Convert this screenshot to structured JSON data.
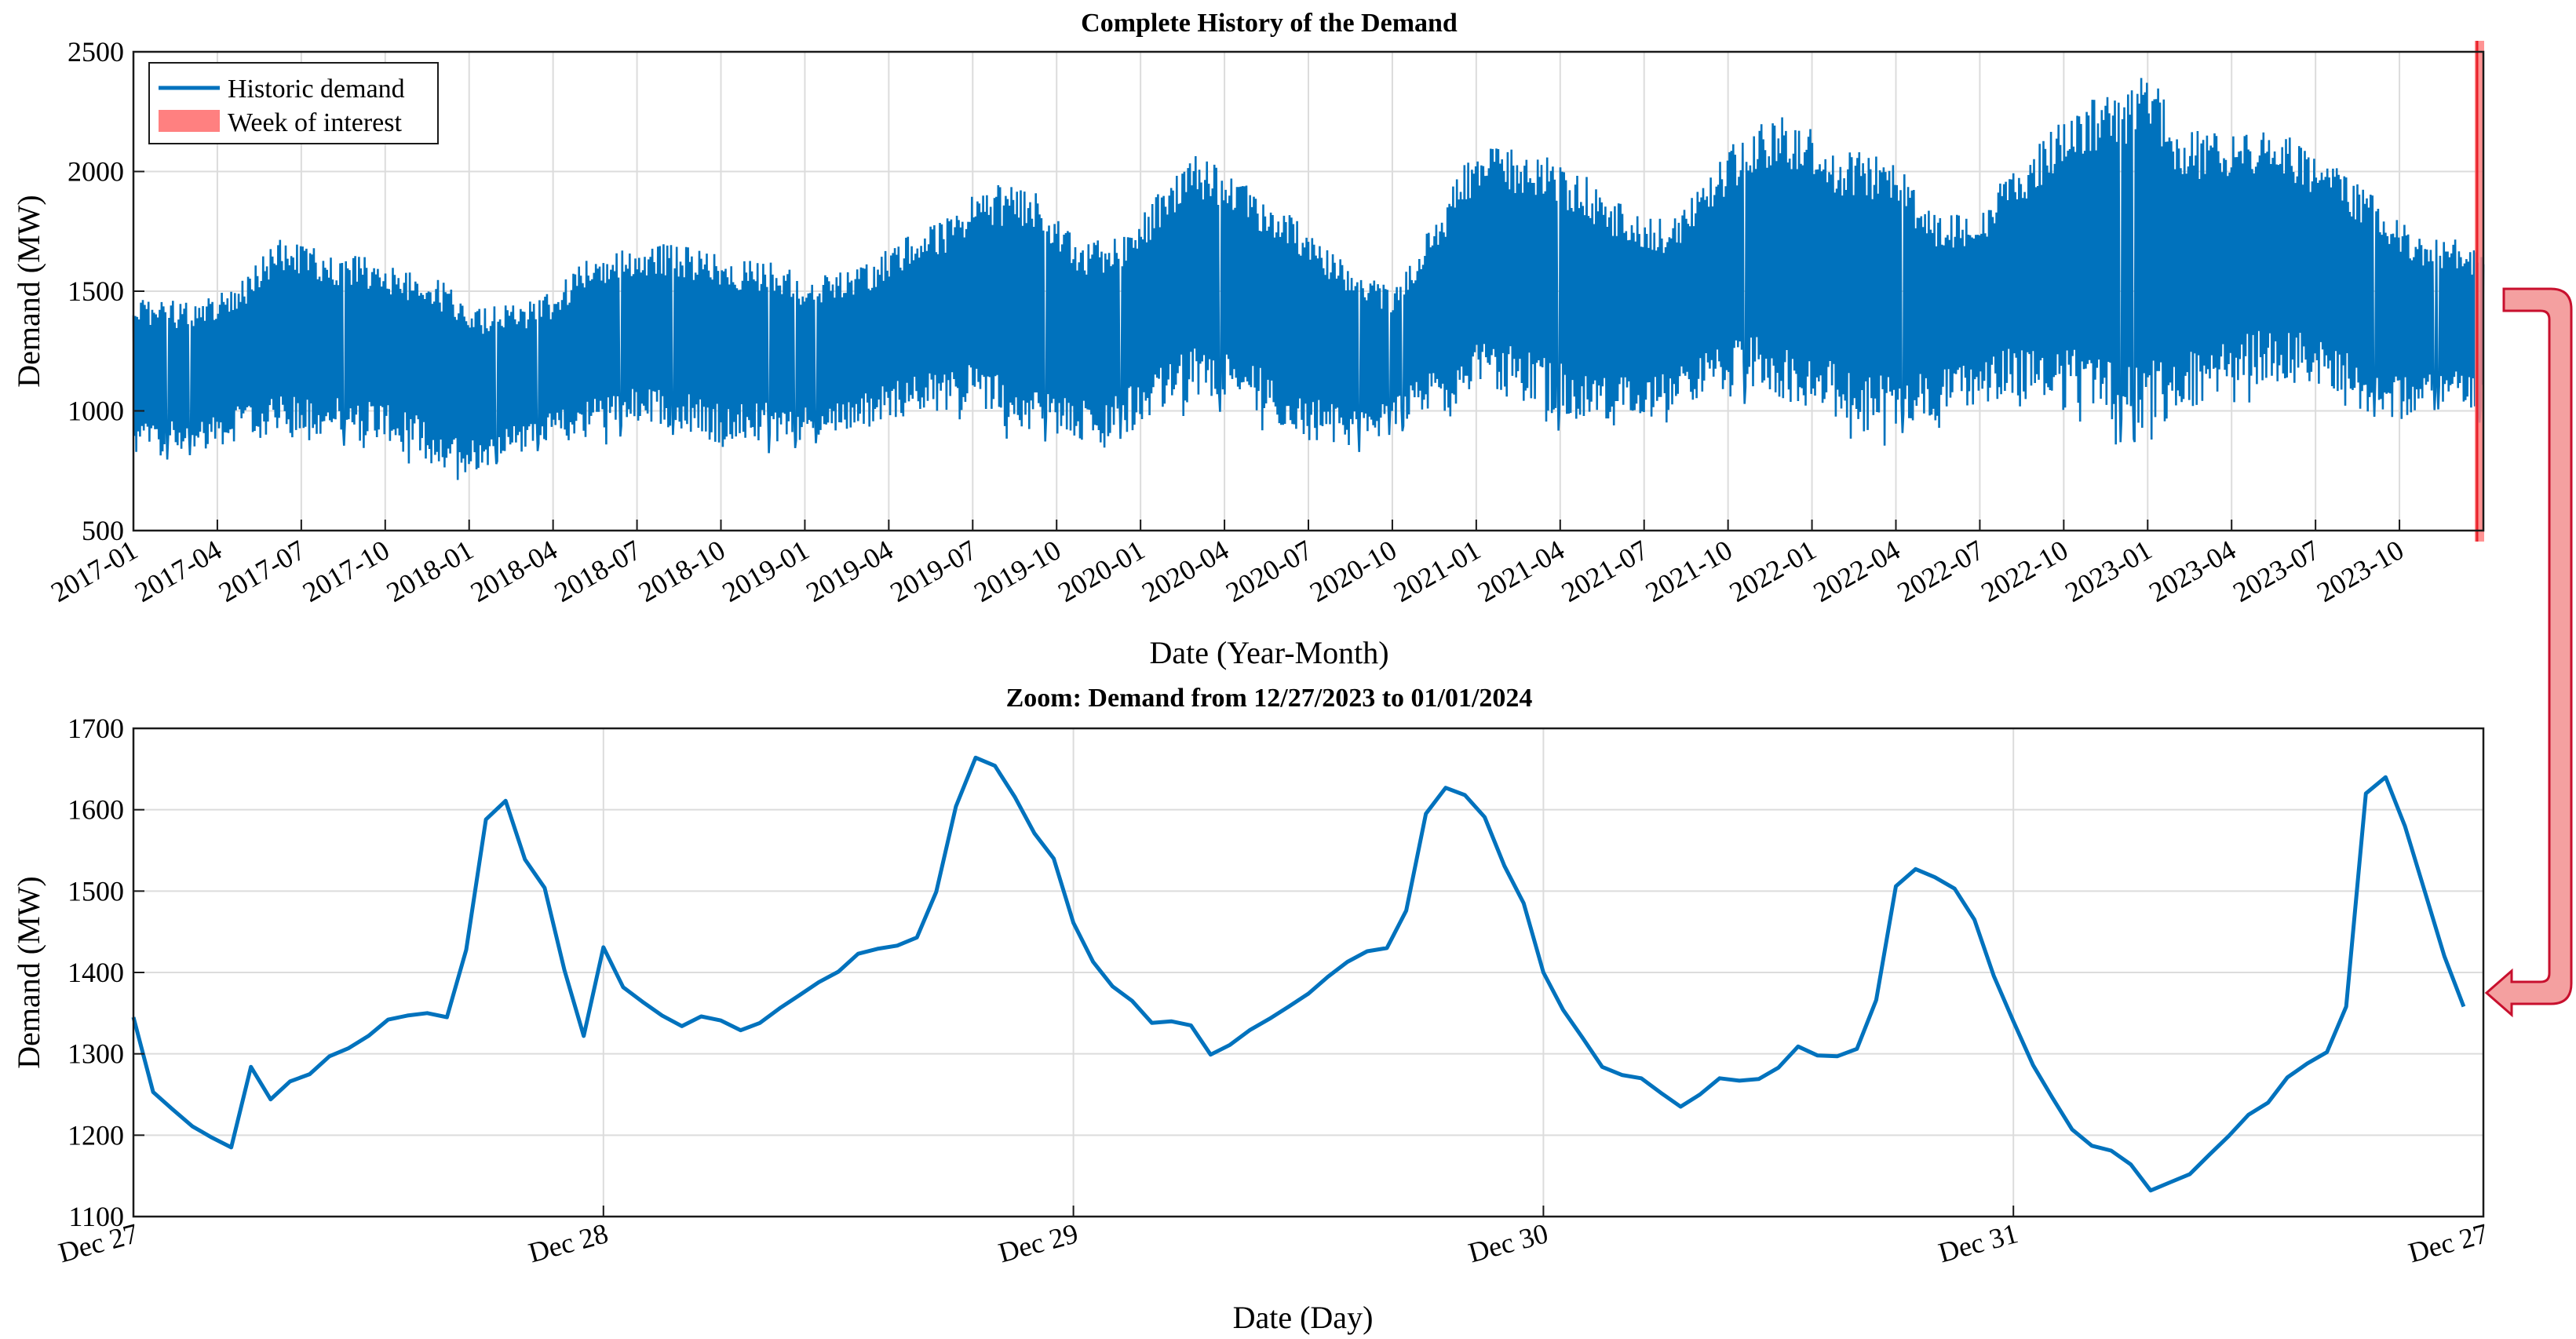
{
  "colors": {
    "series": "#0072BD",
    "highlight": "#FF8080",
    "highlight_edge": "#E8202A",
    "arrow_fill": "#F4A0A0",
    "arrow_edge": "#C8102E"
  },
  "chart_data": [
    {
      "type": "line",
      "title": "Complete History of the Demand",
      "xlabel": "Date (Year-Month)",
      "ylabel": "Demand (MW)",
      "ylim": [
        500,
        2500
      ],
      "yticks": [
        "500",
        "1000",
        "1500",
        "2000",
        "2500"
      ],
      "xticks": [
        "2017-01",
        "2017-04",
        "2017-07",
        "2017-10",
        "2018-01",
        "2018-04",
        "2018-07",
        "2018-10",
        "2019-01",
        "2019-04",
        "2019-07",
        "2019-10",
        "2020-01",
        "2020-04",
        "2020-07",
        "2020-10",
        "2021-01",
        "2021-04",
        "2021-07",
        "2021-10",
        "2022-01",
        "2022-04",
        "2022-07",
        "2022-10",
        "2023-01",
        "2023-04",
        "2023-07",
        "2023-10"
      ],
      "legend": [
        "Historic demand",
        "Week of interest"
      ],
      "legend_position": "top-left",
      "grid": true,
      "series": [
        {
          "name": "Historic demand",
          "x_units": "months since 2017-01",
          "envelope_x": [
            0,
            1,
            2,
            3,
            4,
            5,
            6,
            7,
            8,
            9,
            10,
            11,
            12,
            13,
            14,
            15,
            16,
            17,
            18,
            19,
            20,
            21,
            22,
            23,
            24,
            25,
            26,
            27,
            28,
            29,
            30,
            31,
            32,
            33,
            34,
            35,
            36,
            37,
            38,
            39,
            40,
            41,
            42,
            43,
            44,
            45,
            46,
            47,
            48,
            49,
            50,
            51,
            52,
            53,
            54,
            55,
            56,
            57,
            58,
            59,
            60,
            61,
            62,
            63,
            64,
            65,
            66,
            67,
            68,
            69,
            70,
            71,
            72,
            73,
            74,
            75,
            76,
            77,
            78,
            79,
            80,
            81,
            82,
            83,
            84
          ],
          "envelope_min": [
            800,
            830,
            830,
            850,
            880,
            880,
            880,
            900,
            900,
            880,
            830,
            740,
            740,
            780,
            830,
            850,
            880,
            920,
            930,
            920,
            900,
            860,
            860,
            870,
            860,
            900,
            920,
            960,
            990,
            1000,
            1000,
            940,
            880,
            880,
            860,
            880,
            940,
            1000,
            1040,
            1040,
            1000,
            920,
            860,
            850,
            860,
            920,
            980,
            1010,
            1040,
            1060,
            1030,
            960,
            920,
            940,
            960,
            1000,
            1040,
            1060,
            1060,
            1040,
            1000,
            930,
            900,
            920,
            960,
            1000,
            1030,
            1060,
            1060,
            1000,
            920,
            900,
            900,
            960,
            1010,
            1060,
            1100,
            1120,
            1110,
            1050,
            980,
            960,
            1020,
            1020,
            1000
          ],
          "envelope_max": [
            1480,
            1470,
            1450,
            1500,
            1560,
            1720,
            1700,
            1660,
            1650,
            1630,
            1590,
            1560,
            1420,
            1440,
            1450,
            1500,
            1620,
            1660,
            1700,
            1700,
            1680,
            1650,
            1640,
            1620,
            1560,
            1570,
            1600,
            1680,
            1750,
            1800,
            1900,
            1950,
            1970,
            1800,
            1720,
            1720,
            1820,
            1960,
            2080,
            2000,
            1940,
            1850,
            1780,
            1660,
            1600,
            1500,
            1700,
            1900,
            2120,
            2100,
            2080,
            2050,
            1980,
            1880,
            1820,
            1800,
            1950,
            2100,
            2200,
            2240,
            2180,
            2100,
            2100,
            2060,
            1860,
            1820,
            1820,
            2000,
            2100,
            2250,
            2300,
            2340,
            2450,
            2200,
            2170,
            2160,
            2180,
            2150,
            2060,
            2000,
            1920,
            1800,
            1720,
            1720,
            1650
          ],
          "note": "≈7 years of hourly demand; drawn as a dense oscillation between the envelope min and max"
        }
      ],
      "highlight": {
        "name": "Week of interest",
        "start": "2023-12-27",
        "end": "2024-01-01"
      }
    },
    {
      "type": "line",
      "title": "Zoom: Demand from 12/27/2023 to 01/01/2024",
      "xlabel": "Date (Day)",
      "ylabel": "Demand (MW)",
      "ylim": [
        1100,
        1700
      ],
      "yticks": [
        "1100",
        "1200",
        "1300",
        "1400",
        "1500",
        "1600",
        "1700"
      ],
      "xlim": [
        0,
        5
      ],
      "x_units": "days since Dec 27",
      "xticks": [
        "Dec 27",
        "Dec 28",
        "Dec 29",
        "Dec 30",
        "Dec 31",
        "Dec 27"
      ],
      "grid": true,
      "series": [
        {
          "name": "Historic demand",
          "x": [
            0,
            0.042,
            0.083,
            0.125,
            0.167,
            0.208,
            0.25,
            0.292,
            0.333,
            0.375,
            0.417,
            0.458,
            0.5,
            0.542,
            0.583,
            0.625,
            0.667,
            0.708,
            0.75,
            0.792,
            0.833,
            0.875,
            0.917,
            0.958,
            1,
            1.042,
            1.083,
            1.125,
            1.167,
            1.208,
            1.25,
            1.292,
            1.333,
            1.375,
            1.417,
            1.458,
            1.5,
            1.542,
            1.583,
            1.625,
            1.667,
            1.708,
            1.75,
            1.792,
            1.833,
            1.875,
            1.917,
            1.958,
            2,
            2.042,
            2.083,
            2.125,
            2.167,
            2.208,
            2.25,
            2.292,
            2.333,
            2.375,
            2.417,
            2.458,
            2.5,
            2.542,
            2.583,
            2.625,
            2.667,
            2.708,
            2.75,
            2.792,
            2.833,
            2.875,
            2.917,
            2.958,
            3,
            3.042,
            3.083,
            3.125,
            3.167,
            3.208,
            3.25,
            3.292,
            3.333,
            3.375,
            3.417,
            3.458,
            3.5,
            3.542,
            3.583,
            3.625,
            3.667,
            3.708,
            3.75,
            3.792,
            3.833,
            3.875,
            3.917,
            3.958,
            4,
            4.042,
            4.083,
            4.125,
            4.167,
            4.208,
            4.25,
            4.292,
            4.333,
            4.375,
            4.417,
            4.458,
            4.5,
            4.542,
            4.583,
            4.625,
            4.667,
            4.708,
            4.75,
            4.792,
            4.833,
            4.875,
            4.917,
            4.958
          ],
          "values": [
            1345,
            1253,
            1232,
            1211,
            1197,
            1185,
            1284,
            1244,
            1266,
            1275,
            1297,
            1307,
            1322,
            1342,
            1347,
            1350,
            1345,
            1428,
            1588,
            1611,
            1539,
            1504,
            1403,
            1322,
            1431,
            1382,
            1364,
            1347,
            1334,
            1346,
            1341,
            1329,
            1338,
            1356,
            1372,
            1388,
            1401,
            1423,
            1429,
            1433,
            1443,
            1499,
            1604,
            1664,
            1654,
            1616,
            1571,
            1540,
            1461,
            1413,
            1383,
            1365,
            1338,
            1340,
            1335,
            1299,
            1311,
            1329,
            1343,
            1358,
            1374,
            1395,
            1413,
            1426,
            1430,
            1476,
            1595,
            1627,
            1618,
            1591,
            1531,
            1485,
            1400,
            1354,
            1320,
            1284,
            1274,
            1270,
            1252,
            1235,
            1250,
            1270,
            1267,
            1269,
            1283,
            1309,
            1298,
            1297,
            1306,
            1366,
            1506,
            1527,
            1517,
            1503,
            1465,
            1396,
            1340,
            1286,
            1246,
            1207,
            1187,
            1181,
            1164,
            1132,
            1142,
            1152,
            1176,
            1199,
            1225,
            1240,
            1271,
            1288,
            1302,
            1358,
            1620,
            1640,
            1580,
            1500,
            1420,
            1358
          ]
        }
      ]
    }
  ]
}
